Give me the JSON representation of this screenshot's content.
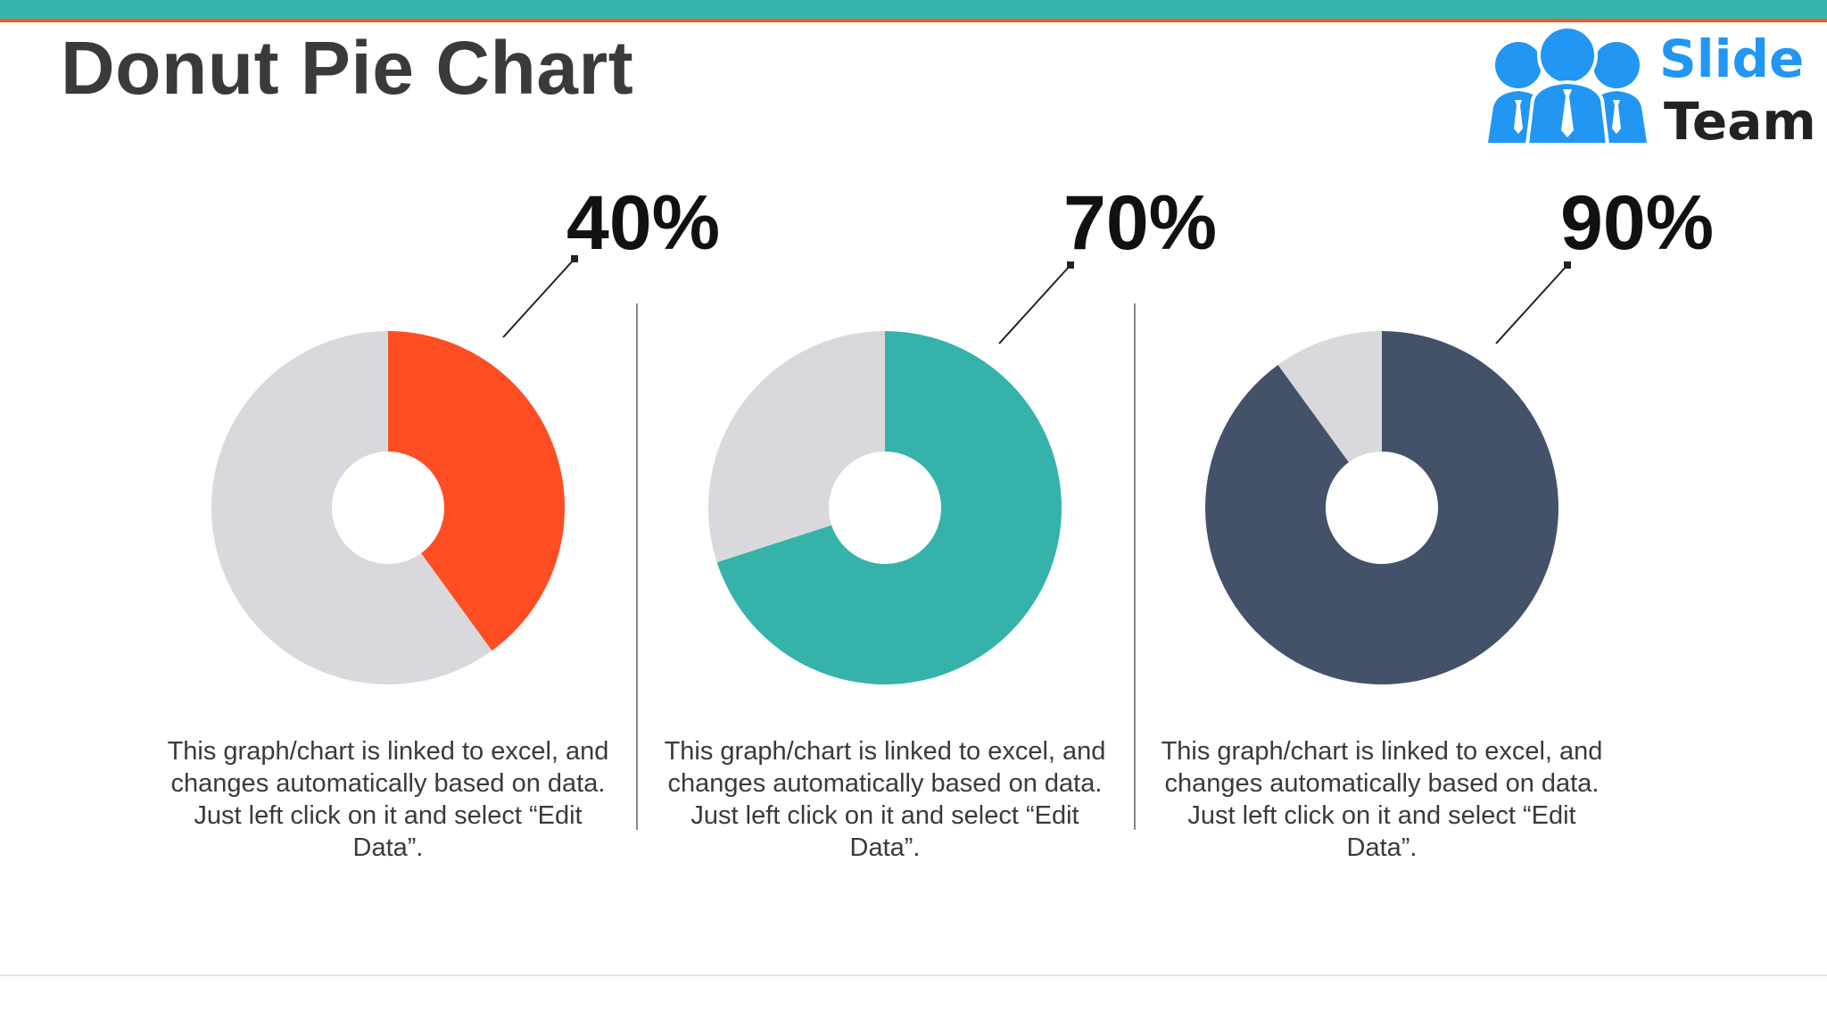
{
  "slide": {
    "title": "Donut Pie Chart"
  },
  "logo": {
    "line1": "Slide",
    "line2": "Team",
    "colors": {
      "icon": "#2196f3",
      "slide_text": "#2196f3",
      "team_text": "#222222"
    }
  },
  "colors": {
    "top_bar": "#35b3ab",
    "top_bar_accent": "#f05a28",
    "remainder": "#d9d8dc"
  },
  "chart_data": [
    {
      "type": "pie",
      "label": "40%",
      "values": [
        40,
        60
      ],
      "colors": [
        "#ff4d24",
        "#d9d8dc"
      ],
      "description": "This graph/chart is linked to excel, and changes automatically based on data. Just left click on it and select “Edit Data”."
    },
    {
      "type": "pie",
      "label": "70%",
      "values": [
        70,
        30
      ],
      "colors": [
        "#35b3ab",
        "#d9d8dc"
      ],
      "description": "This graph/chart is linked to excel, and changes automatically based on data. Just left click on it and select “Edit Data”."
    },
    {
      "type": "pie",
      "label": "90%",
      "values": [
        90,
        10
      ],
      "colors": [
        "#435268",
        "#d9d8dc"
      ],
      "description": "This graph/chart is linked to excel, and changes automatically based on data. Just left click on it and select “Edit Data”."
    }
  ]
}
